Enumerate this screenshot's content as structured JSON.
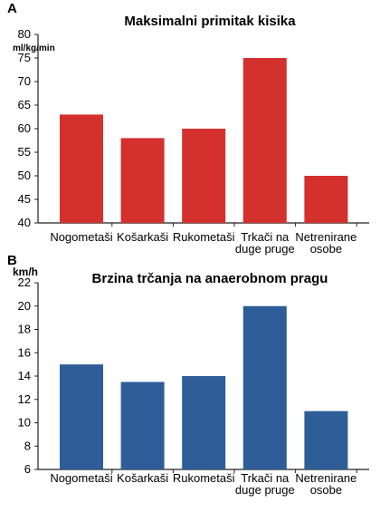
{
  "chart_data": [
    {
      "panel_label": "A",
      "type": "bar",
      "title": "Maksimalni primitak kisika",
      "ylabel": "ml/kg/min",
      "xlabel": "",
      "categories": [
        [
          "Nogometaši"
        ],
        [
          "Košarkaši"
        ],
        [
          "Rukometaši"
        ],
        [
          "Trkači na",
          "duge pruge"
        ],
        [
          "Netrenirane",
          "osobe"
        ]
      ],
      "values": [
        63,
        58,
        60,
        75,
        50
      ],
      "ylim": [
        40,
        80
      ],
      "yticks": [
        40,
        45,
        50,
        55,
        60,
        65,
        70,
        75,
        80
      ],
      "grid": false,
      "color": "#d4302e"
    },
    {
      "panel_label": "B",
      "type": "bar",
      "title": "Brzina trčanja na anaerobnom pragu",
      "ylabel": "km/h",
      "xlabel": "",
      "categories": [
        [
          "Nogometaši"
        ],
        [
          "Košarkaši"
        ],
        [
          "Rukometaši"
        ],
        [
          "Trkači na",
          "duge pruge"
        ],
        [
          "Netrenirane",
          "osobe"
        ]
      ],
      "values": [
        15,
        13.5,
        14,
        20,
        11
      ],
      "ylim": [
        6,
        22
      ],
      "yticks": [
        6,
        8,
        10,
        12,
        14,
        16,
        18,
        20,
        22
      ],
      "grid": false,
      "color": "#2e5d98"
    }
  ]
}
